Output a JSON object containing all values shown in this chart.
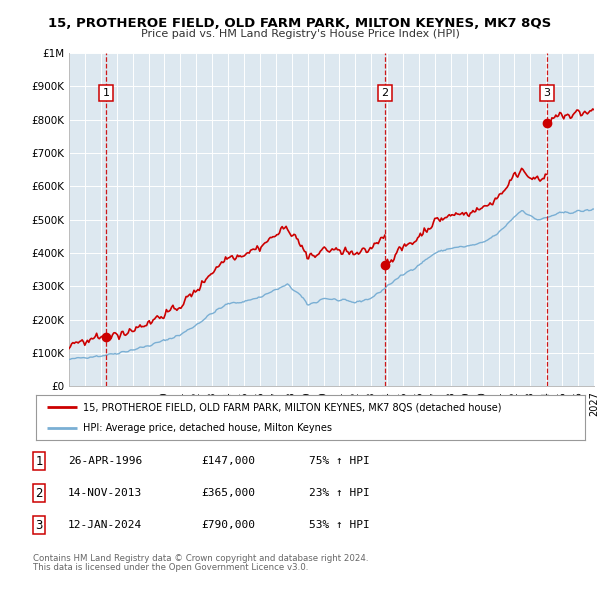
{
  "title": "15, PROTHEROE FIELD, OLD FARM PARK, MILTON KEYNES, MK7 8QS",
  "subtitle": "Price paid vs. HM Land Registry's House Price Index (HPI)",
  "legend_label_red": "15, PROTHEROE FIELD, OLD FARM PARK, MILTON KEYNES, MK7 8QS (detached house)",
  "legend_label_blue": "HPI: Average price, detached house, Milton Keynes",
  "footer_line1": "Contains HM Land Registry data © Crown copyright and database right 2024.",
  "footer_line2": "This data is licensed under the Open Government Licence v3.0.",
  "xlim": [
    1994.0,
    2027.0
  ],
  "ylim": [
    0,
    1000000
  ],
  "yticks": [
    0,
    100000,
    200000,
    300000,
    400000,
    500000,
    600000,
    700000,
    800000,
    900000,
    1000000
  ],
  "ytick_labels": [
    "£0",
    "£100K",
    "£200K",
    "£300K",
    "£400K",
    "£500K",
    "£600K",
    "£700K",
    "£800K",
    "£900K",
    "£1M"
  ],
  "sale_points": [
    {
      "num": 1,
      "year": 1996.32,
      "price": 147000,
      "date": "26-APR-1996",
      "pct": "75%",
      "dir": "↑"
    },
    {
      "num": 2,
      "year": 2013.87,
      "price": 365000,
      "date": "14-NOV-2013",
      "pct": "23%",
      "dir": "↑"
    },
    {
      "num": 3,
      "year": 2024.04,
      "price": 790000,
      "date": "12-JAN-2024",
      "pct": "53%",
      "dir": "↑"
    }
  ],
  "red_color": "#cc0000",
  "blue_color": "#7aafd4",
  "bg_color": "#dde8f0",
  "grid_color": "#ffffff",
  "vline_color": "#cc0000",
  "box_color": "#cc0000",
  "table_data": [
    [
      "1",
      "26-APR-1996",
      "£147,000",
      "75% ↑ HPI"
    ],
    [
      "2",
      "14-NOV-2013",
      "£365,000",
      "23% ↑ HPI"
    ],
    [
      "3",
      "12-JAN-2024",
      "£790,000",
      "53% ↑ HPI"
    ]
  ]
}
